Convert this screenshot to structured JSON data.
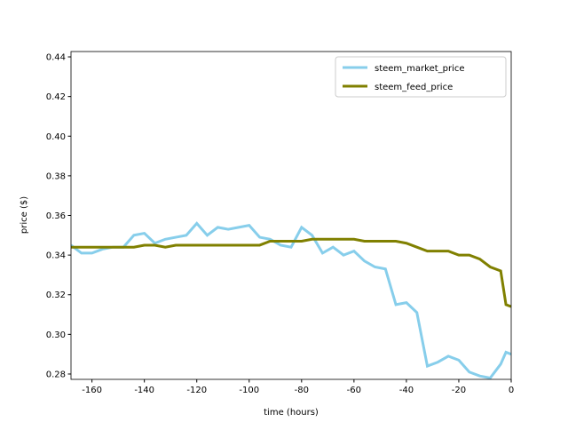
{
  "chart_data": {
    "type": "line",
    "xlabel": "time (hours)",
    "ylabel": "price ($)",
    "x": [
      -168,
      -164,
      -160,
      -156,
      -152,
      -148,
      -144,
      -140,
      -136,
      -132,
      -128,
      -124,
      -120,
      -116,
      -112,
      -108,
      -104,
      -100,
      -96,
      -92,
      -88,
      -84,
      -80,
      -76,
      -72,
      -68,
      -64,
      -60,
      -56,
      -52,
      -48,
      -44,
      -40,
      -36,
      -32,
      -28,
      -24,
      -20,
      -16,
      -12,
      -8,
      -4,
      -2,
      0
    ],
    "series": [
      {
        "name": "steem_market_price",
        "color": "#87ceeb",
        "values": [
          0.345,
          0.341,
          0.341,
          0.343,
          0.344,
          0.344,
          0.35,
          0.351,
          0.346,
          0.348,
          0.349,
          0.35,
          0.356,
          0.35,
          0.354,
          0.353,
          0.354,
          0.355,
          0.349,
          0.348,
          0.345,
          0.344,
          0.354,
          0.35,
          0.341,
          0.344,
          0.34,
          0.342,
          0.337,
          0.334,
          0.333,
          0.315,
          0.316,
          0.311,
          0.284,
          0.286,
          0.289,
          0.287,
          0.281,
          0.279,
          0.278,
          0.285,
          0.291,
          0.29
        ]
      },
      {
        "name": "steem_feed_price",
        "color": "#808000",
        "values": [
          0.344,
          0.344,
          0.344,
          0.344,
          0.344,
          0.344,
          0.344,
          0.345,
          0.345,
          0.344,
          0.345,
          0.345,
          0.345,
          0.345,
          0.345,
          0.345,
          0.345,
          0.345,
          0.345,
          0.347,
          0.347,
          0.347,
          0.347,
          0.348,
          0.348,
          0.348,
          0.348,
          0.348,
          0.347,
          0.347,
          0.347,
          0.347,
          0.346,
          0.344,
          0.342,
          0.342,
          0.342,
          0.34,
          0.34,
          0.338,
          0.334,
          0.332,
          0.315,
          0.314
        ]
      }
    ],
    "xlim": [
      -168,
      0
    ],
    "xticks": [
      -160,
      -140,
      -120,
      -100,
      -80,
      -60,
      -40,
      -20,
      0
    ],
    "ylim": [
      0.2773,
      0.4427
    ],
    "yticks": [
      0.28,
      {
        "value": 0.3,
        "label": "0.30"
      },
      0.32,
      0.34,
      0.36,
      0.38,
      {
        "value": 0.4,
        "label": "0.40"
      },
      0.42,
      0.44
    ],
    "grid": false,
    "legend": "upper right"
  }
}
